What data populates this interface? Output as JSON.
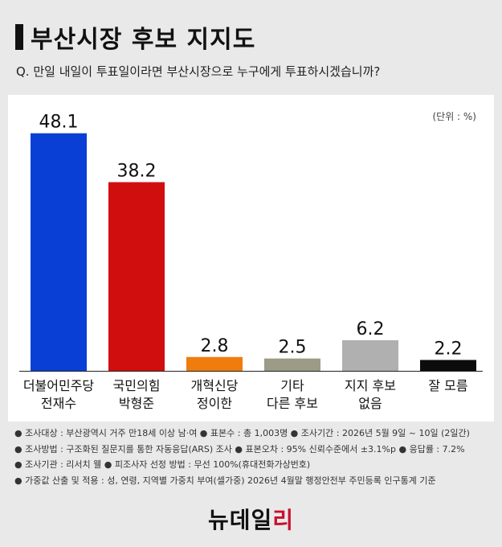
{
  "header": {
    "title": "부산시장 후보 지지도",
    "subtitle": "Q. 만일 내일이 투표일이라면 부산시장으로 누구에게 투표하시겠습니까?"
  },
  "chart_data": {
    "type": "bar",
    "unit_label": "(단위 : %)",
    "categories": [
      [
        "더불어민주당",
        "전재수"
      ],
      [
        "국민의힘",
        "박형준"
      ],
      [
        "개혁신당",
        "정이한"
      ],
      [
        "기타",
        "다른 후보"
      ],
      [
        "지지 후보",
        "없음"
      ],
      [
        "잘 모름"
      ]
    ],
    "values": [
      48.1,
      38.2,
      2.8,
      2.5,
      6.2,
      2.2
    ],
    "value_labels": [
      "48.1",
      "38.2",
      "2.8",
      "2.5",
      "6.2",
      "2.2"
    ],
    "colors": [
      "#0a3fd6",
      "#d10e0e",
      "#f07c0d",
      "#9c9c86",
      "#b0b0b0",
      "#0c0c0c"
    ],
    "ylim": [
      0,
      50
    ],
    "grid": false,
    "legend": "none"
  },
  "notes": [
    "● 조사대상 : 부산광역시 거주 만18세 이상 남·여  ● 표본수 : 총 1,003명  ● 조사기간 : 2026년 5월 9일 ~ 10일 (2일간)",
    "● 조사방법 : 구조화된 질문지를 통한 자동응답(ARS) 조사  ● 표본오차 : 95% 신뢰수준에서 ±3.1%p  ● 응답률 : 7.2%",
    "● 조사기관 : 리서치 웰  ● 피조사자 선정 방법 : 무선 100%(휴대전화가상번호)",
    "● 가중값 산출 및 적용 : 성, 연령, 지역별 가중치 부여(셀가중) 2026년 4월말 행정안전부 주민등록 인구통계 기준"
  ],
  "logo": {
    "main": "뉴데일",
    "accent": "리"
  }
}
